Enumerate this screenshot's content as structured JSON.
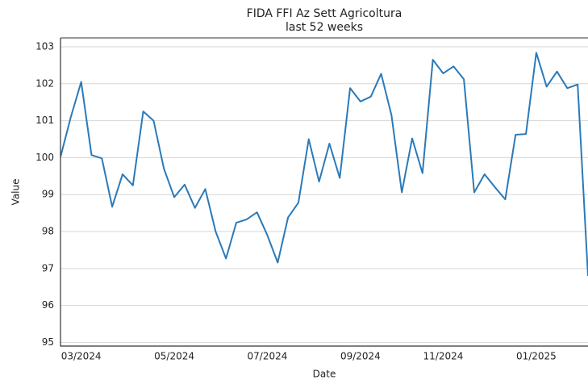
{
  "chart_data": {
    "type": "line",
    "title": "FIDA FFI Az Sett Agricoltura",
    "subtitle": "last 52 weeks",
    "x_label": "Date",
    "y_label": "Value",
    "categories": [
      null,
      null,
      "03/2024",
      null,
      null,
      null,
      null,
      null,
      null,
      null,
      null,
      "05/2024",
      null,
      null,
      null,
      null,
      null,
      null,
      null,
      null,
      "07/2024",
      null,
      null,
      null,
      null,
      null,
      null,
      null,
      null,
      "09/2024",
      null,
      null,
      null,
      null,
      null,
      null,
      null,
      "11/2024",
      null,
      null,
      null,
      null,
      null,
      null,
      null,
      null,
      "01/2025",
      null,
      null,
      null,
      null,
      null
    ],
    "series": [
      {
        "name": "FIDA FFI Az Sett Agricoltura",
        "color": "#2a7ab9",
        "values": [
          100.02,
          101.1,
          102.05,
          100.07,
          99.98,
          98.67,
          99.55,
          99.25,
          101.25,
          101.0,
          99.7,
          98.93,
          99.27,
          98.64,
          99.15,
          98.0,
          97.27,
          98.24,
          98.33,
          98.52,
          97.9,
          97.16,
          98.38,
          98.78,
          100.5,
          99.35,
          100.38,
          99.45,
          101.88,
          101.52,
          101.65,
          102.27,
          101.15,
          99.06,
          100.52,
          99.58,
          102.65,
          102.28,
          102.47,
          102.12,
          99.06,
          99.55,
          99.2,
          98.87,
          100.62,
          100.64,
          102.84,
          101.92,
          102.33,
          101.88,
          101.98,
          96.8
        ]
      }
    ],
    "ylim": [
      94.9,
      103.24
    ],
    "yticks": [
      95,
      96,
      97,
      98,
      99,
      100,
      101,
      102,
      103
    ],
    "grid": true
  }
}
